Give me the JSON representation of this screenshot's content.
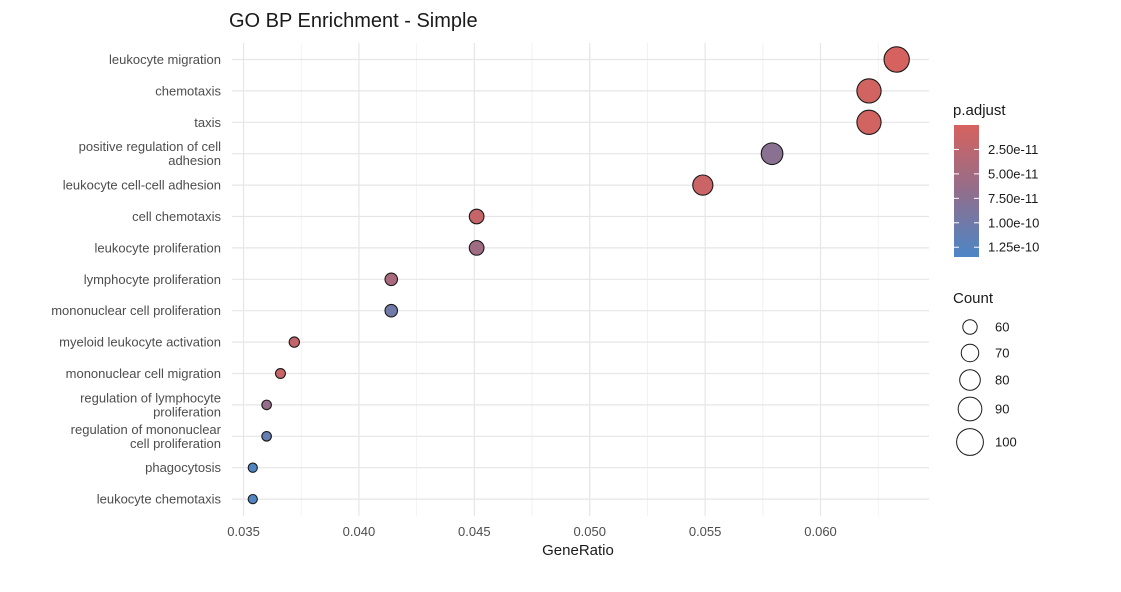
{
  "chart_data": {
    "type": "scatter",
    "title": "GO BP Enrichment - Simple",
    "xlabel": "GeneRatio",
    "ylabel": "",
    "xlim": [
      0.0345,
      0.0647
    ],
    "x_ticks": [
      "0.035",
      "0.040",
      "0.045",
      "0.050",
      "0.055",
      "0.060"
    ],
    "grid": true,
    "legend_placement": "right",
    "color_scale": {
      "title": "p.adjust",
      "low_color": "#d6625e",
      "high_color": "#4c86c6",
      "min": 0,
      "max": 1.35e-10,
      "ticks": [
        "2.50e-11",
        "5.00e-11",
        "7.50e-11",
        "1.00e-10",
        "1.25e-10"
      ]
    },
    "size_scale": {
      "title": "Count",
      "ticks": [
        "60",
        "70",
        "80",
        "90",
        "100"
      ]
    },
    "points": [
      {
        "term": "leukocyte migration",
        "x": 0.0633,
        "count": 98,
        "p_adjust": 1e-12
      },
      {
        "term": "chemotaxis",
        "x": 0.0621,
        "count": 95,
        "p_adjust": 5e-12
      },
      {
        "term": "taxis",
        "x": 0.0621,
        "count": 95,
        "p_adjust": 5e-12
      },
      {
        "term": "positive regulation of cell\nadhesion",
        "x": 0.0579,
        "count": 88,
        "p_adjust": 7.5e-11
      },
      {
        "term": "leukocyte cell-cell adhesion",
        "x": 0.0549,
        "count": 84,
        "p_adjust": 1.2e-11
      },
      {
        "term": "cell chemotaxis",
        "x": 0.0451,
        "count": 69,
        "p_adjust": 1.6e-11
      },
      {
        "term": "leukocyte proliferation",
        "x": 0.0451,
        "count": 69,
        "p_adjust": 5.5e-11
      },
      {
        "term": "lymphocyte proliferation",
        "x": 0.0414,
        "count": 63,
        "p_adjust": 4.5e-11
      },
      {
        "term": "mononuclear cell proliferation",
        "x": 0.0414,
        "count": 63,
        "p_adjust": 1e-10
      },
      {
        "term": "myeloid leukocyte activation",
        "x": 0.0372,
        "count": 57,
        "p_adjust": 1.8e-11
      },
      {
        "term": "mononuclear cell migration",
        "x": 0.0366,
        "count": 56,
        "p_adjust": 1.4e-11
      },
      {
        "term": "regulation of lymphocyte\nproliferation",
        "x": 0.036,
        "count": 55,
        "p_adjust": 6.5e-11
      },
      {
        "term": "regulation of mononuclear\ncell proliferation",
        "x": 0.036,
        "count": 55,
        "p_adjust": 1.1e-10
      },
      {
        "term": "phagocytosis",
        "x": 0.0354,
        "count": 54,
        "p_adjust": 1.3e-10
      },
      {
        "term": "leukocyte chemotaxis",
        "x": 0.0354,
        "count": 54,
        "p_adjust": 1.3e-10
      }
    ]
  }
}
